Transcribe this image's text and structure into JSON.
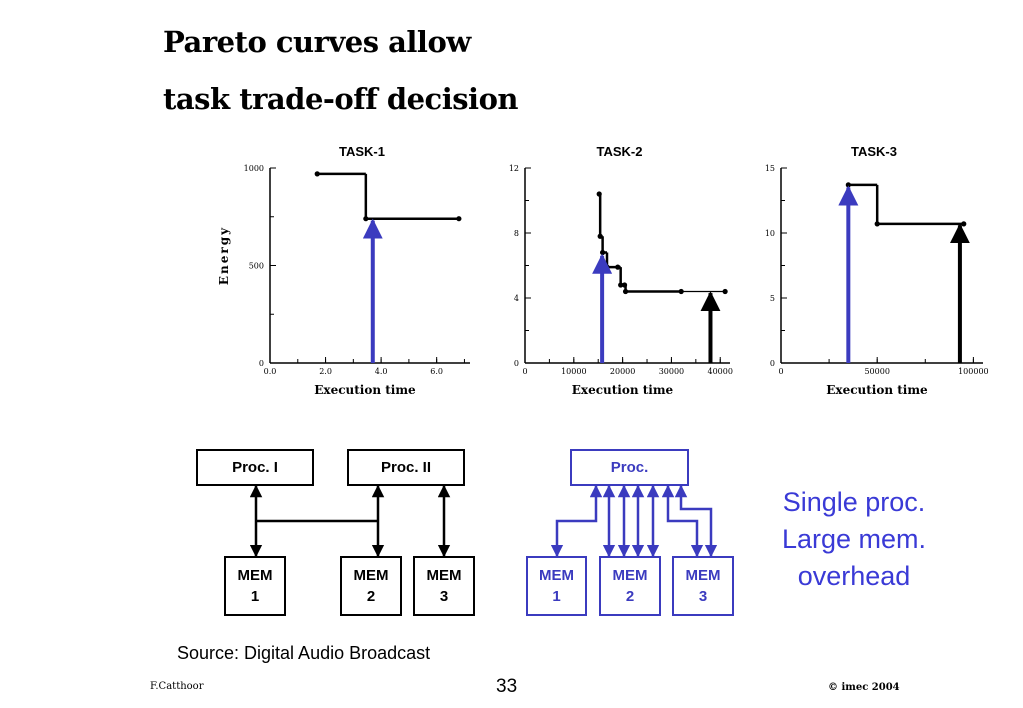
{
  "slide": {
    "title_line1": "Pareto curves allow",
    "title_line2": "task trade-off decision",
    "note_lines": [
      "Single proc.",
      "Large mem.",
      "overhead"
    ],
    "source": "Source:  Digital Audio Broadcast",
    "footer_left": "F.Catthoor",
    "page_number": "33",
    "footer_right": "© imec 2004"
  },
  "colors": {
    "black": "#000000",
    "blue": "#3b3bbf",
    "note_blue": "#3a3ad6"
  },
  "chart_data": [
    {
      "type": "line",
      "title": "TASK-1",
      "xlabel": "Execution time",
      "ylabel": "Energy",
      "xlim": [
        0,
        7.2
      ],
      "ylim": [
        0,
        1000
      ],
      "xticks": [
        0.0,
        2.0,
        4.0,
        6.0
      ],
      "xtick_labels": [
        "0.0",
        "2.0",
        "4.0",
        "6.0"
      ],
      "yticks": [
        0,
        500,
        1000
      ],
      "ytick_labels": [
        "0",
        "500",
        "1000"
      ],
      "x_minor_step": 1.0,
      "y_minor_step": 250,
      "series": [
        {
          "step": "pre",
          "points": [
            [
              1.7,
              970
            ],
            [
              3.45,
              740
            ],
            [
              6.8,
              740
            ]
          ],
          "emphasis": [
            true,
            true,
            false
          ]
        }
      ],
      "markers": [
        {
          "x": 3.7,
          "y": 730,
          "color": "blue"
        }
      ]
    },
    {
      "type": "line",
      "title": "TASK-2",
      "xlabel": "Execution time",
      "ylabel": "",
      "xlim": [
        0,
        42000
      ],
      "ylim": [
        0,
        12
      ],
      "xticks": [
        0,
        10000,
        20000,
        30000,
        40000
      ],
      "xtick_labels": [
        "0",
        "10000",
        "20000",
        "30000",
        "40000"
      ],
      "yticks": [
        0,
        4,
        8,
        12
      ],
      "ytick_labels": [
        "0",
        "4",
        "8",
        "12"
      ],
      "x_minor_step": 5000,
      "y_minor_step": 2,
      "series": [
        {
          "step": "pre",
          "points": [
            [
              15200,
              10.4
            ],
            [
              15400,
              7.8
            ],
            [
              15900,
              6.8
            ],
            [
              16800,
              5.9
            ],
            [
              19000,
              5.9
            ],
            [
              19600,
              4.8
            ],
            [
              20400,
              4.8
            ],
            [
              20600,
              4.4
            ],
            [
              32000,
              4.4
            ],
            [
              41000,
              4.4
            ]
          ],
          "emphasis": [
            true,
            true,
            true,
            true,
            true,
            true,
            true,
            true,
            false,
            false
          ]
        }
      ],
      "markers": [
        {
          "x": 15800,
          "y": 6.6,
          "color": "blue"
        },
        {
          "x": 38000,
          "y": 4.3,
          "color": "black"
        }
      ]
    },
    {
      "type": "line",
      "title": "TASK-3",
      "xlabel": "Execution time",
      "ylabel": "",
      "xlim": [
        0,
        105000
      ],
      "ylim": [
        0,
        15
      ],
      "xticks": [
        0,
        50000,
        100000
      ],
      "xtick_labels": [
        "0",
        "50000",
        "100000"
      ],
      "yticks": [
        0,
        5,
        10,
        15
      ],
      "ytick_labels": [
        "0",
        "5",
        "10",
        "15"
      ],
      "x_minor_step": 25000,
      "y_minor_step": 2.5,
      "series": [
        {
          "step": "pre",
          "points": [
            [
              35000,
              13.7
            ],
            [
              50000,
              10.7
            ],
            [
              95000,
              10.7
            ]
          ],
          "emphasis": [
            true,
            true,
            true
          ]
        }
      ],
      "markers": [
        {
          "x": 35000,
          "y": 13.5,
          "color": "blue"
        },
        {
          "x": 93000,
          "y": 10.6,
          "color": "black"
        }
      ]
    }
  ],
  "diagram_left": {
    "proc1": "Proc. I",
    "proc2": "Proc. II",
    "mem1": "MEM\n1",
    "mem2": "MEM\n2",
    "mem3": "MEM\n3"
  },
  "diagram_right": {
    "proc": "Proc.",
    "mem1": "MEM\n1",
    "mem2": "MEM\n2",
    "mem3": "MEM\n3"
  }
}
